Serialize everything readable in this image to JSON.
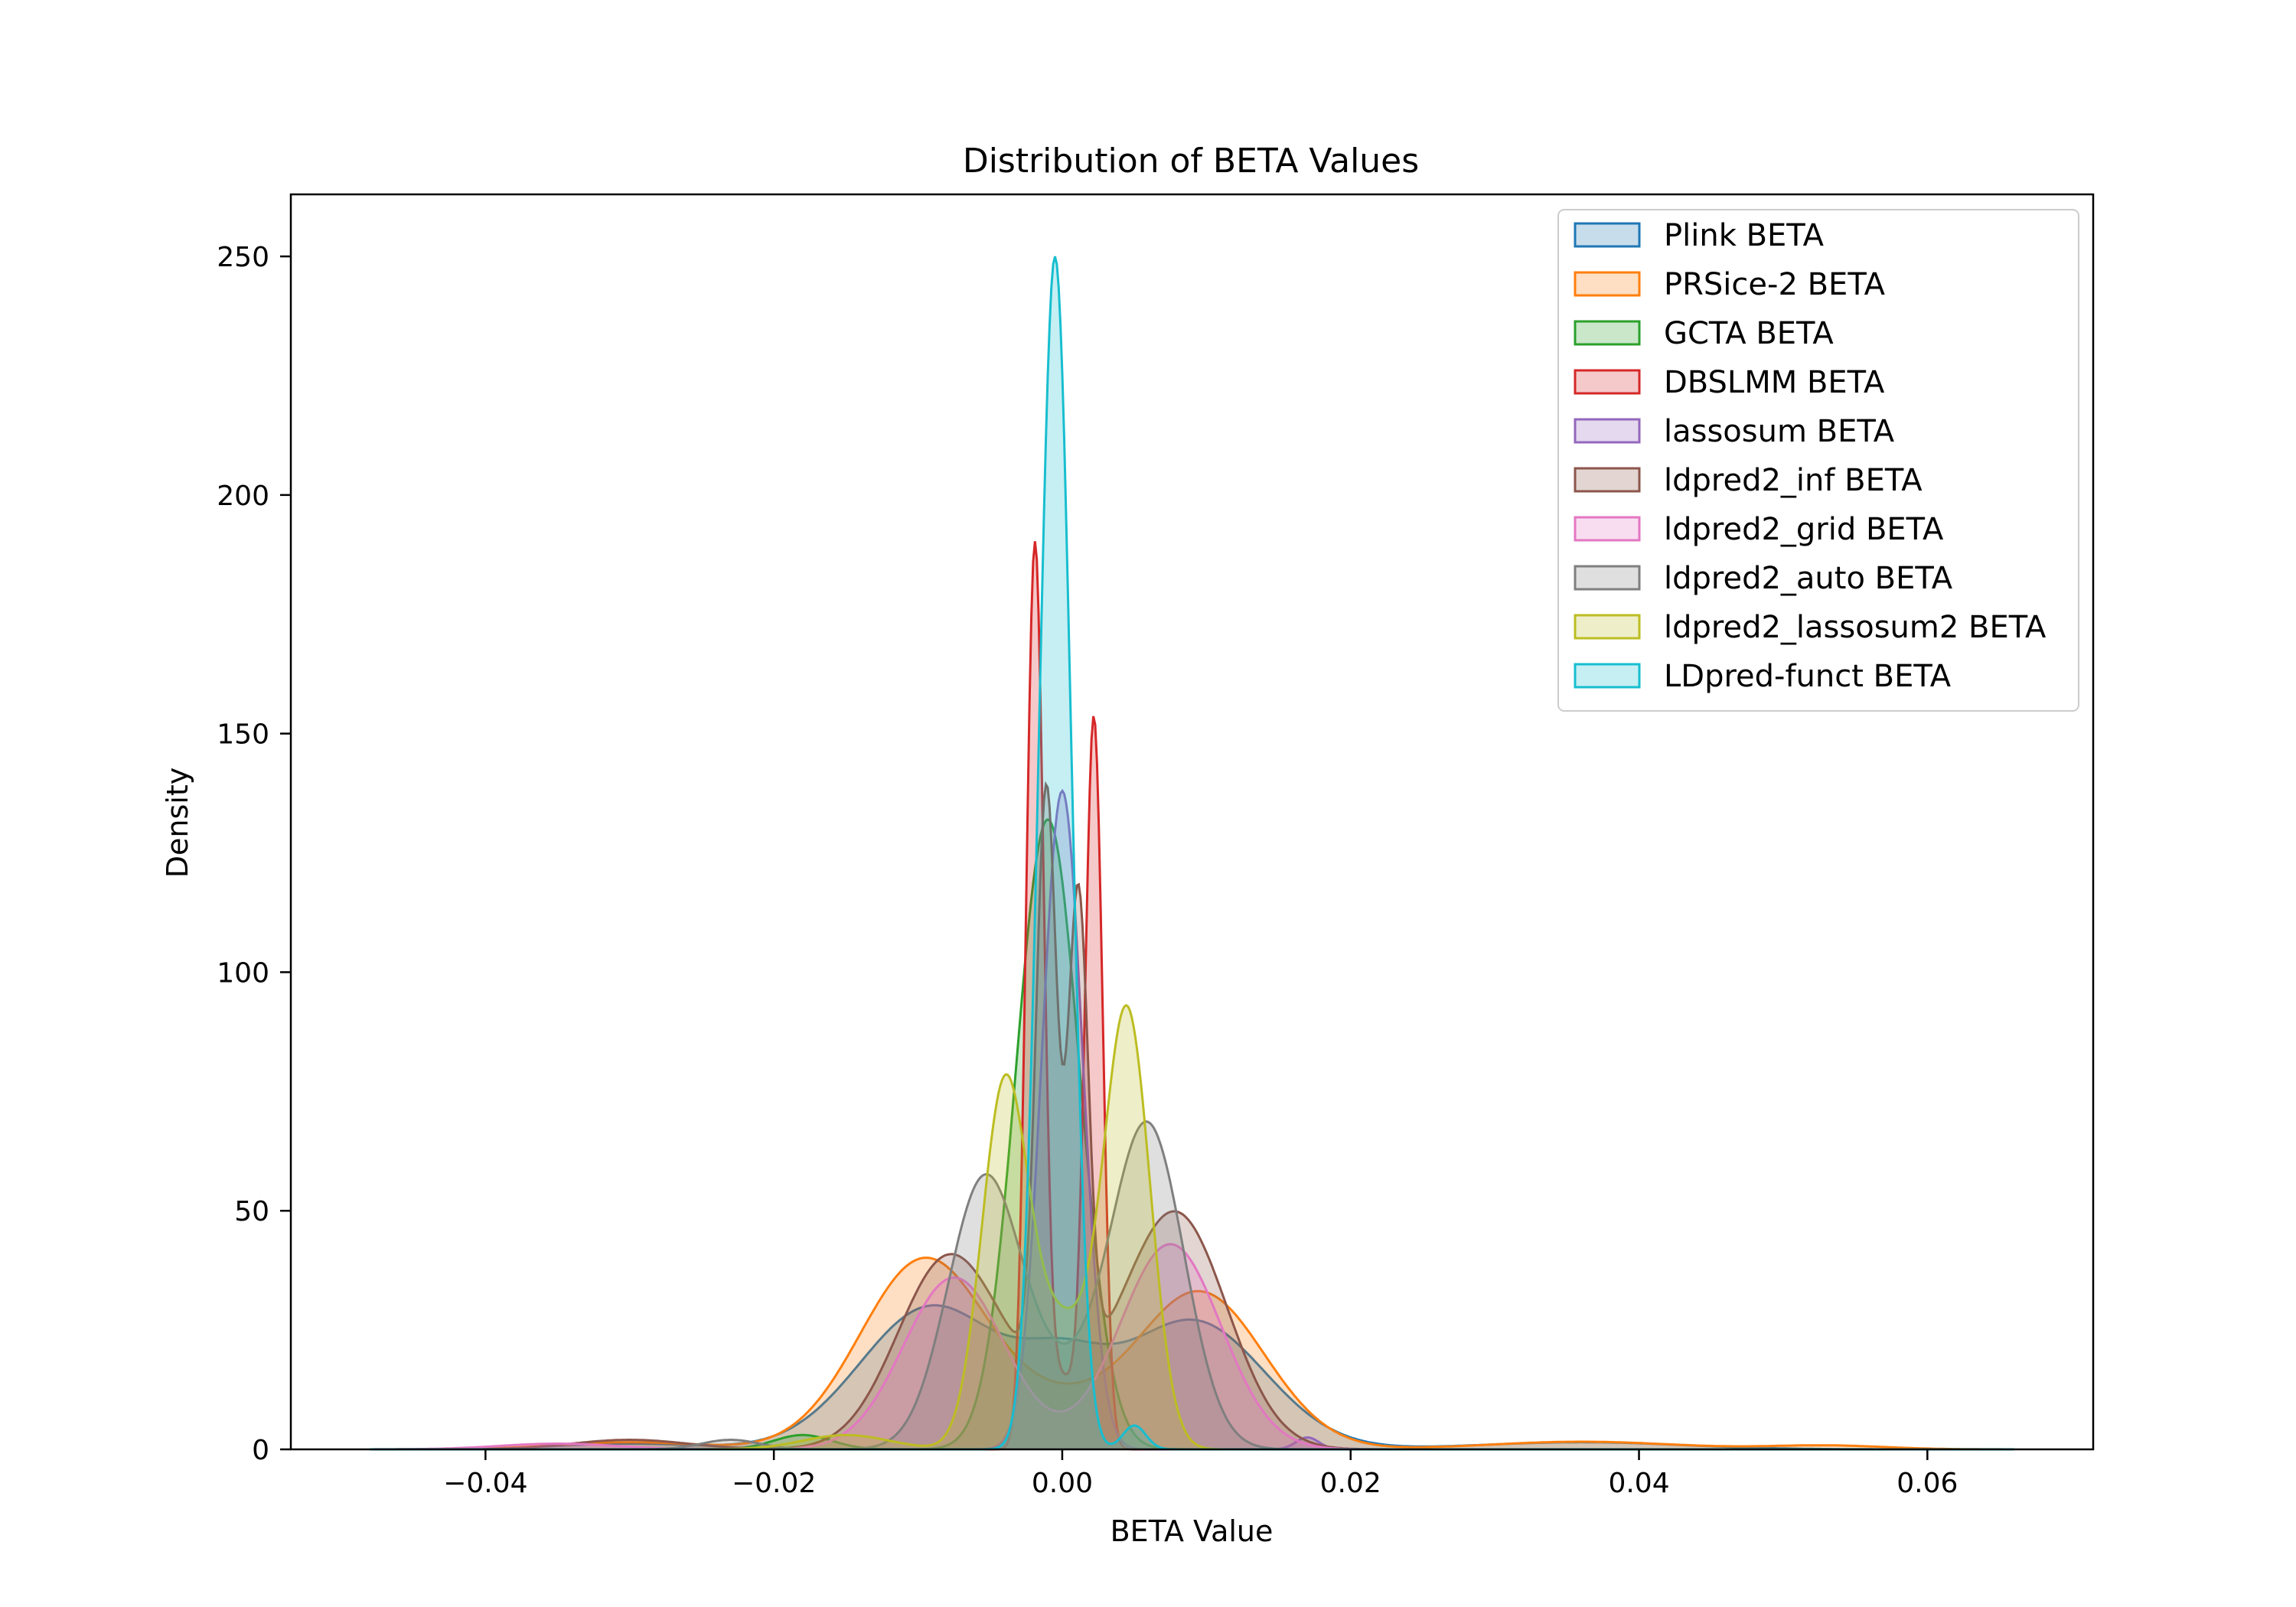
{
  "chart_data": {
    "type": "area",
    "title": "Distribution of BETA Values",
    "xlabel": "BETA Value",
    "ylabel": "Density",
    "xlim": [
      -0.0535,
      0.0715
    ],
    "ylim": [
      0,
      263
    ],
    "x_ticks": [
      {
        "value": -0.04,
        "label": "−0.04"
      },
      {
        "value": -0.02,
        "label": "−0.02"
      },
      {
        "value": 0.0,
        "label": "0.00"
      },
      {
        "value": 0.02,
        "label": "0.02"
      },
      {
        "value": 0.04,
        "label": "0.04"
      },
      {
        "value": 0.06,
        "label": "0.06"
      }
    ],
    "y_ticks": [
      {
        "value": 0,
        "label": "0"
      },
      {
        "value": 50,
        "label": "50"
      },
      {
        "value": 100,
        "label": "100"
      },
      {
        "value": 150,
        "label": "150"
      },
      {
        "value": 200,
        "label": "200"
      },
      {
        "value": 250,
        "label": "250"
      }
    ],
    "grid": false,
    "legend_position": "top-right",
    "series": [
      {
        "name": "Plink BETA",
        "color": "#1f77b4",
        "peaks": [
          [
            -0.009,
            0.005,
            30
          ],
          [
            0.009,
            0.005,
            27
          ],
          [
            0.0,
            0.003,
            12
          ],
          [
            0.036,
            0.007,
            1.5
          ],
          [
            -0.03,
            0.005,
            1.2
          ]
        ]
      },
      {
        "name": "PRSice-2 BETA",
        "color": "#ff7f0e",
        "peaks": [
          [
            -0.0095,
            0.0045,
            40
          ],
          [
            0.0095,
            0.0045,
            33
          ],
          [
            0.036,
            0.0065,
            1.6
          ],
          [
            0.053,
            0.004,
            0.8
          ],
          [
            -0.03,
            0.005,
            1.5
          ],
          [
            0.0,
            0.0035,
            6
          ]
        ]
      },
      {
        "name": "GCTA BETA",
        "color": "#2ca02c",
        "peaks": [
          [
            -0.001,
            0.0022,
            132
          ],
          [
            -0.018,
            0.002,
            3
          ]
        ]
      },
      {
        "name": "DBSLMM BETA",
        "color": "#d62728",
        "peaks": [
          [
            -0.0019,
            0.0006,
            186
          ],
          [
            0.0022,
            0.0006,
            151
          ],
          [
            0.0,
            0.0012,
            15
          ]
        ]
      },
      {
        "name": "lassosum BETA",
        "color": "#9467bd",
        "peaks": [
          [
            0.0,
            0.0014,
            138
          ],
          [
            0.017,
            0.0008,
            2.5
          ]
        ]
      },
      {
        "name": "ldpred2_inf BETA",
        "color": "#8c564b",
        "peaks": [
          [
            -0.008,
            0.0035,
            38
          ],
          [
            0.008,
            0.0035,
            47
          ],
          [
            -0.0011,
            0.0007,
            122
          ],
          [
            0.0011,
            0.0007,
            100
          ],
          [
            0.0,
            0.005,
            10
          ],
          [
            -0.03,
            0.004,
            2
          ]
        ]
      },
      {
        "name": "ldpred2_grid BETA",
        "color": "#e377c2",
        "peaks": [
          [
            -0.0075,
            0.0035,
            36
          ],
          [
            0.0075,
            0.0035,
            43
          ],
          [
            -0.035,
            0.004,
            1.2
          ]
        ]
      },
      {
        "name": "ldpred2_auto BETA",
        "color": "#7f7f7f",
        "peaks": [
          [
            -0.0055,
            0.0025,
            52
          ],
          [
            0.006,
            0.0025,
            64
          ],
          [
            0.0,
            0.004,
            14
          ],
          [
            -0.023,
            0.002,
            2
          ]
        ]
      },
      {
        "name": "ldpred2_lassosum2 BETA",
        "color": "#bcbd22",
        "peaks": [
          [
            -0.004,
            0.0016,
            75
          ],
          [
            0.0045,
            0.0016,
            91
          ],
          [
            0.0,
            0.002,
            25
          ],
          [
            -0.015,
            0.003,
            3
          ]
        ]
      },
      {
        "name": "LDpred-funct BETA",
        "color": "#17becf",
        "peaks": [
          [
            -0.0005,
            0.0011,
            250
          ],
          [
            0.005,
            0.0008,
            5
          ]
        ]
      }
    ]
  }
}
